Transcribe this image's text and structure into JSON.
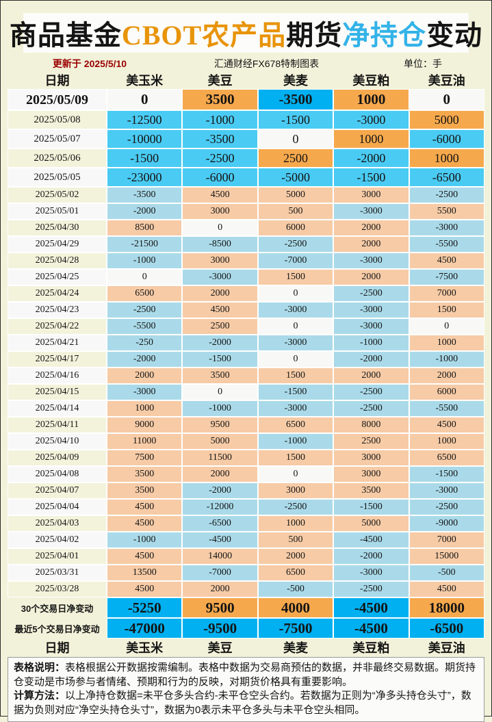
{
  "title": {
    "segments": [
      {
        "text": "商品基金",
        "color": "#141414"
      },
      {
        "text": "CBOT农产品",
        "color": "#E8940A"
      },
      {
        "text": "期货",
        "color": "#141414"
      },
      {
        "text": "净持仓",
        "color": "#33B3E8"
      },
      {
        "text": "变动",
        "color": "#141414"
      }
    ]
  },
  "meta": {
    "updated": "更新于 2025/5/10",
    "source": "汇通财经FX678特制图表",
    "unit": "单位：手"
  },
  "chart_data": {
    "type": "table",
    "title": "商品基金CBOT农产品期货净持仓变动",
    "unit": "手",
    "columns": [
      "日期",
      "美玉米",
      "美豆",
      "美麦",
      "美豆粕",
      "美豆油"
    ],
    "rows": [
      {
        "date": "2025/05/09",
        "values": [
          0,
          3500,
          -3500,
          1000,
          0
        ]
      },
      {
        "date": "2025/05/08",
        "values": [
          -12500,
          -1000,
          -1500,
          -3000,
          5000
        ]
      },
      {
        "date": "2025/05/07",
        "values": [
          -10000,
          -3500,
          0,
          1000,
          -6000
        ]
      },
      {
        "date": "2025/05/06",
        "values": [
          -1500,
          -2500,
          2500,
          -2000,
          1000
        ]
      },
      {
        "date": "2025/05/05",
        "values": [
          -23000,
          -6000,
          -5000,
          -1500,
          -6500
        ]
      },
      {
        "date": "2025/05/02",
        "values": [
          -3500,
          4500,
          5000,
          3000,
          -2500
        ]
      },
      {
        "date": "2025/05/01",
        "values": [
          -2000,
          3000,
          500,
          -3000,
          5500
        ]
      },
      {
        "date": "2025/04/30",
        "values": [
          8500,
          0,
          6000,
          2000,
          -3000
        ]
      },
      {
        "date": "2025/04/29",
        "values": [
          -21500,
          -8500,
          -2500,
          2000,
          -5500
        ]
      },
      {
        "date": "2025/04/28",
        "values": [
          -1000,
          3000,
          -7000,
          -3000,
          4500
        ]
      },
      {
        "date": "2025/04/25",
        "values": [
          0,
          -3000,
          1500,
          2000,
          -7500
        ]
      },
      {
        "date": "2025/04/24",
        "values": [
          6500,
          2000,
          0,
          -2500,
          7000
        ]
      },
      {
        "date": "2025/04/23",
        "values": [
          -2500,
          4500,
          -3000,
          -3000,
          1500
        ]
      },
      {
        "date": "2025/04/22",
        "values": [
          -5500,
          2500,
          0,
          -3000,
          0
        ]
      },
      {
        "date": "2025/04/21",
        "values": [
          -250,
          -2000,
          -3000,
          -1000,
          1000
        ]
      },
      {
        "date": "2025/04/17",
        "values": [
          -2000,
          -1500,
          0,
          -2000,
          -1000
        ]
      },
      {
        "date": "2025/04/16",
        "values": [
          2000,
          3500,
          1500,
          2000,
          2000
        ]
      },
      {
        "date": "2025/04/15",
        "values": [
          -3000,
          0,
          -1500,
          -2500,
          6000
        ]
      },
      {
        "date": "2025/04/14",
        "values": [
          1000,
          -1000,
          -3000,
          -2500,
          -5500
        ]
      },
      {
        "date": "2025/04/11",
        "values": [
          9000,
          9500,
          6500,
          8000,
          4500
        ]
      },
      {
        "date": "2025/04/10",
        "values": [
          11000,
          5000,
          -1000,
          2500,
          1000
        ]
      },
      {
        "date": "2025/04/09",
        "values": [
          7500,
          11500,
          1500,
          3000,
          6500
        ]
      },
      {
        "date": "2025/04/08",
        "values": [
          3500,
          2000,
          0,
          3000,
          -1500
        ]
      },
      {
        "date": "2025/04/07",
        "values": [
          3500,
          -2000,
          3000,
          3500,
          -3000
        ]
      },
      {
        "date": "2025/04/04",
        "values": [
          4500,
          -12000,
          -2500,
          -1500,
          -2500
        ]
      },
      {
        "date": "2025/04/03",
        "values": [
          4500,
          -6500,
          1000,
          5000,
          -9000
        ]
      },
      {
        "date": "2025/04/02",
        "values": [
          -1000,
          -4500,
          500,
          -4500,
          7000
        ]
      },
      {
        "date": "2025/04/01",
        "values": [
          4500,
          14000,
          2000,
          -2000,
          15000
        ]
      },
      {
        "date": "2025/03/31",
        "values": [
          13500,
          -7000,
          6500,
          -3000,
          -500
        ]
      },
      {
        "date": "2025/03/28",
        "values": [
          4500,
          2000,
          -500,
          -2500,
          4500
        ]
      }
    ],
    "summary": [
      {
        "label": "30个交易日净变动",
        "values": [
          -5250,
          9500,
          4000,
          -4500,
          18000
        ]
      },
      {
        "label": "最近5个交易日净变动",
        "values": [
          -47000,
          -9500,
          -7500,
          -4500,
          -6500
        ]
      }
    ],
    "footer_columns": [
      "日期",
      "美玉米",
      "美豆",
      "美麦",
      "美豆粕",
      "美豆油"
    ]
  },
  "colors": {
    "deep_blue": "#00B0F0",
    "bright_blue": "#4ACBF3",
    "muted_blue": "#AADAE9",
    "strong_orange": "#F6A84C",
    "muted_orange": "#F6CBA6",
    "zero_bg": "#F8F8F6",
    "date_beige": "#F3F3DC",
    "date_white": "#F8F8F8"
  },
  "notes": {
    "line1_label": "表格说明：",
    "line1_text": "表格根据公开数据按需编制。表格中数据为交易商预估的数据，并非最终交易数据。期货持仓变动是市场参与者情绪、预期和行为的反映，对期货价格具有重要影响。",
    "line2_label": "计算方法：",
    "line2_text": "以上净持仓数据=未平仓多头合约-未平仓空头合约。若数据为正则为“净多头持仓头寸”，数据为负则对应“净空头持仓头寸”，数据为0表示未平仓多头与未平仓空头相同。"
  }
}
